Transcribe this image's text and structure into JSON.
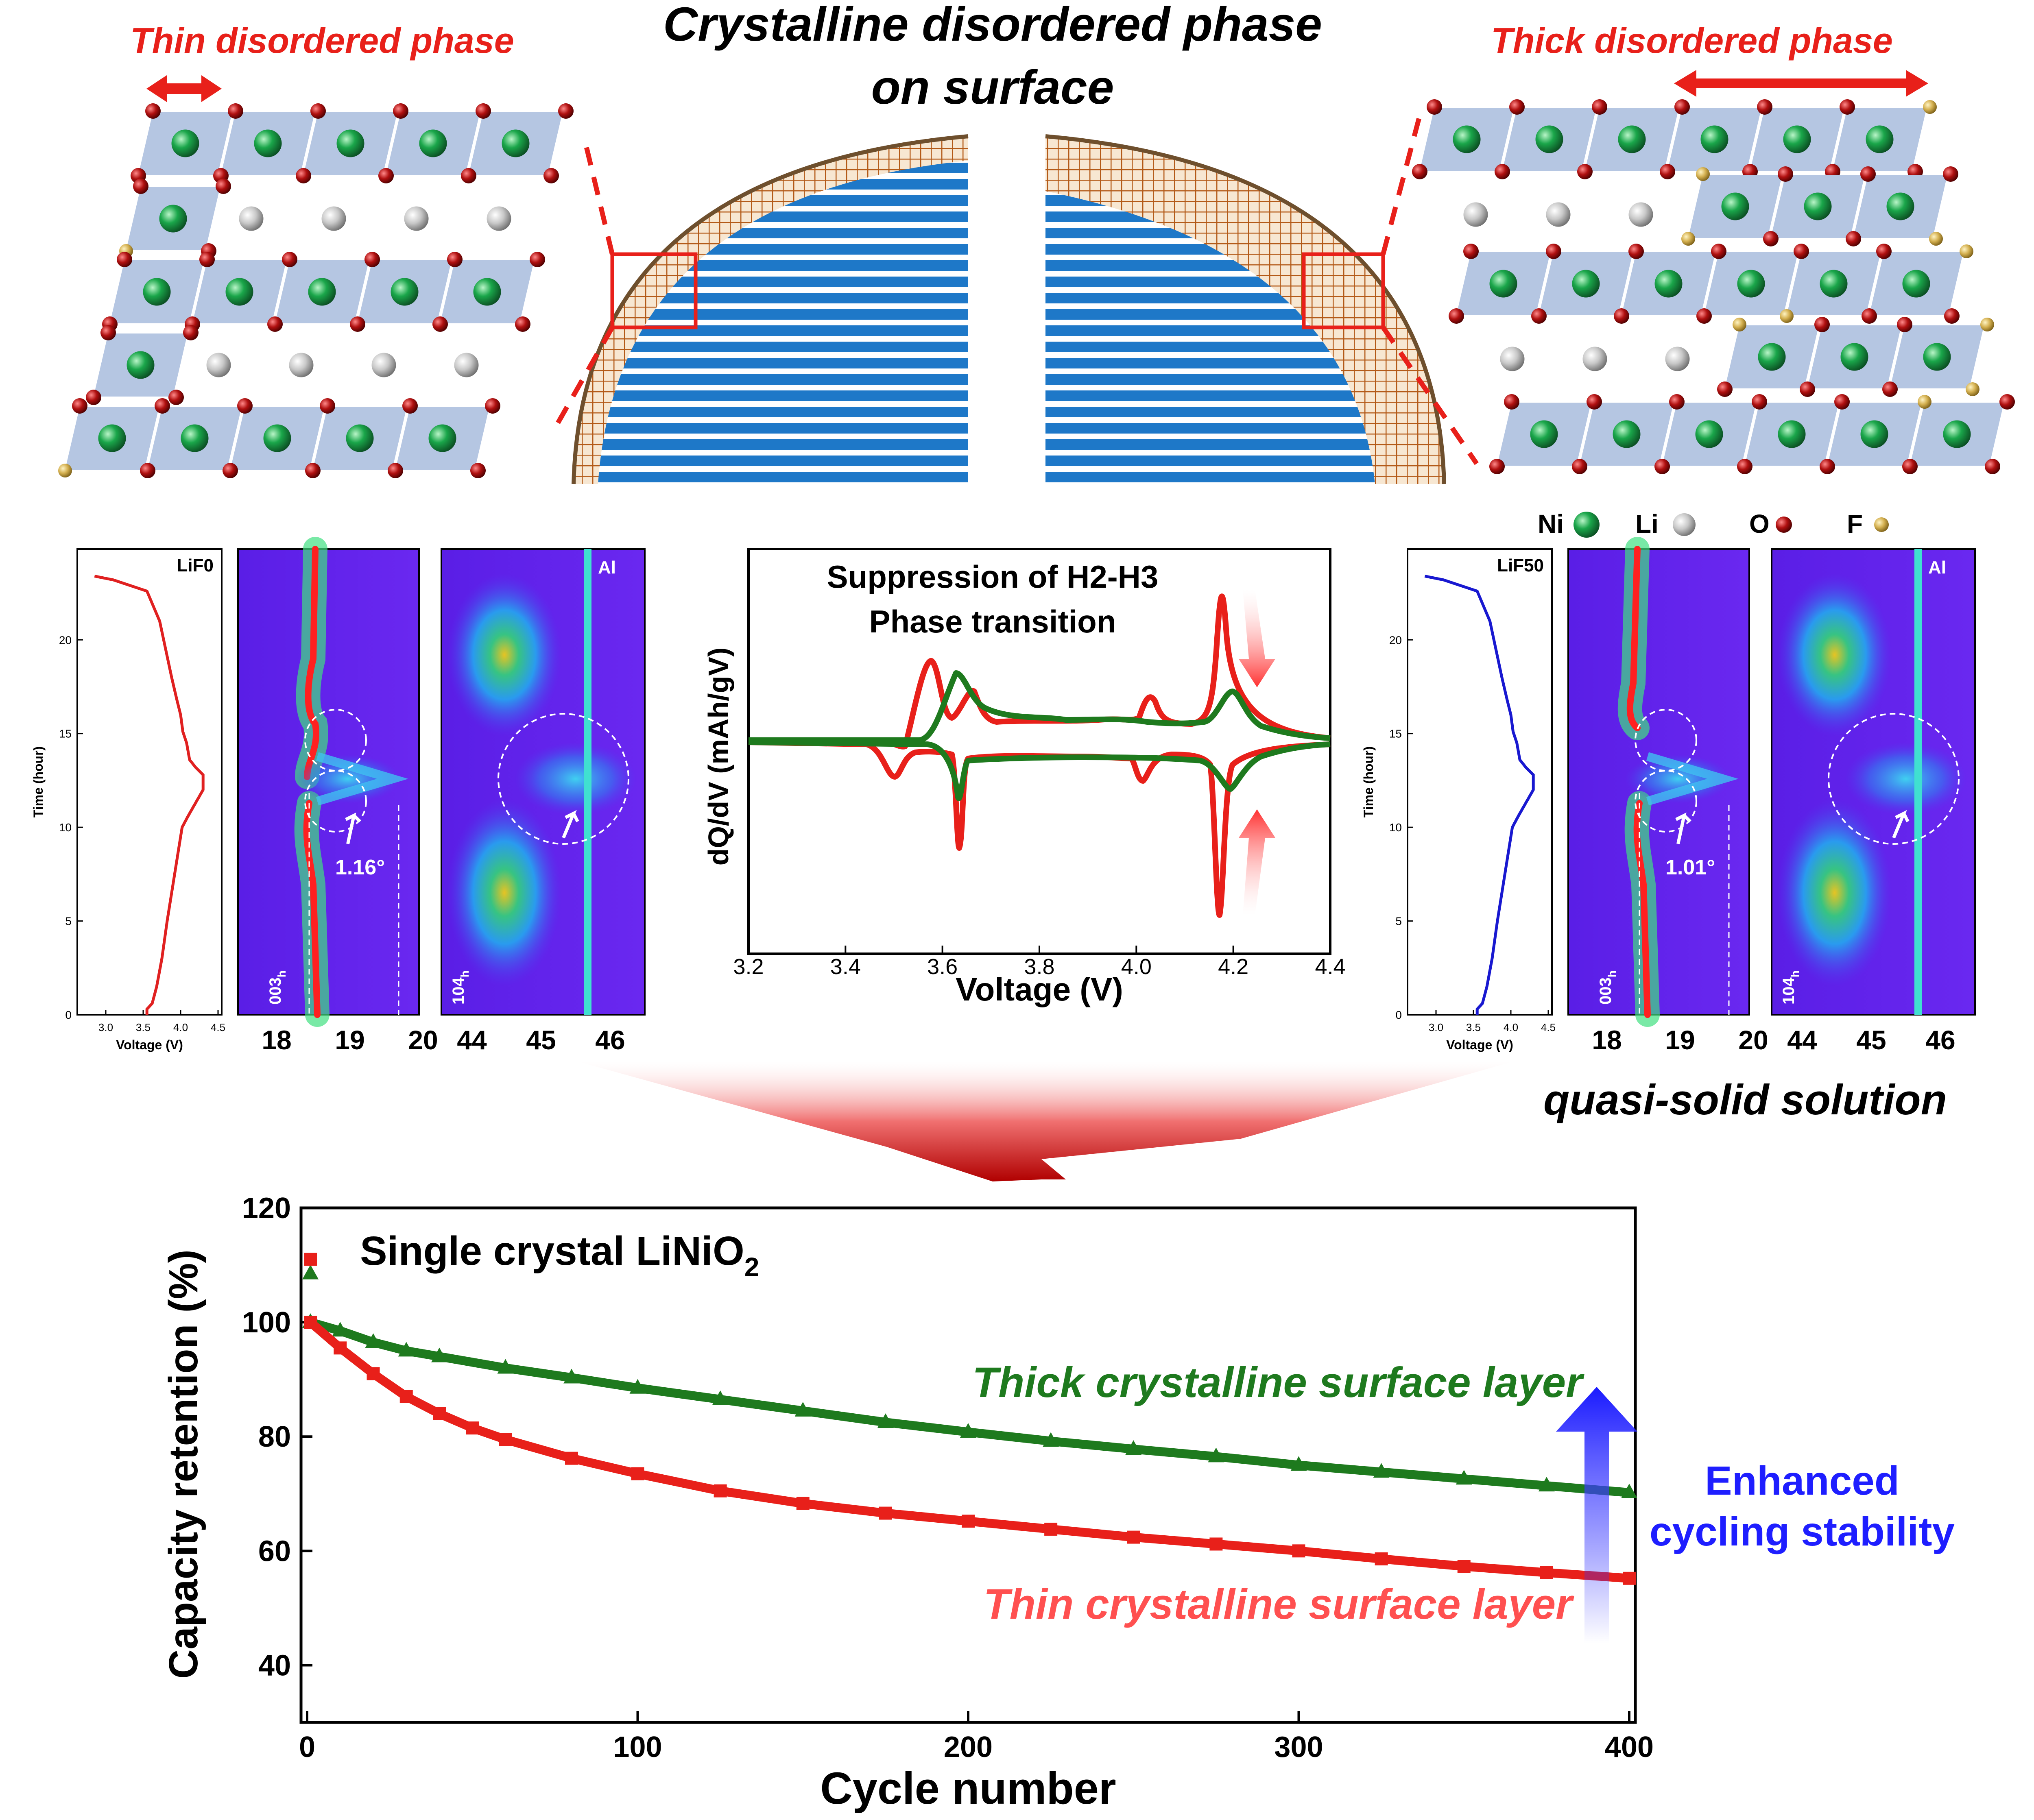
{
  "top": {
    "title_line1": "Crystalline disordered phase",
    "title_line2": "on surface",
    "thin_label": "Thin disordered phase",
    "thick_label": "Thick disordered phase",
    "legend": [
      {
        "label": "Ni",
        "color": "#1aa64a"
      },
      {
        "label": "Li",
        "color": "#c8c8c8"
      },
      {
        "label": "O",
        "color": "#b01010"
      },
      {
        "label": "F",
        "color": "#d4b050"
      }
    ]
  },
  "middle": {
    "left": {
      "sample": "LiF0",
      "volt_ticks": [
        "3.0",
        "3.5",
        "4.0",
        "4.5"
      ],
      "volt_label": "Voltage (V)",
      "time_ticks": [
        "0",
        "5",
        "10",
        "15",
        "20"
      ],
      "time_label": "Time (hour)",
      "peak003": "003",
      "peak104": "104",
      "sub_h": "h",
      "al": "Al",
      "angle": "1.16°",
      "xrd1_ticks": [
        "18",
        "19",
        "20"
      ],
      "xrd2_ticks": [
        "44",
        "45",
        "46"
      ]
    },
    "right": {
      "sample": "LiF50",
      "volt_ticks": [
        "3.0",
        "3.5",
        "4.0",
        "4.5"
      ],
      "volt_label": "Voltage (V)",
      "time_ticks": [
        "0",
        "5",
        "10",
        "15",
        "20"
      ],
      "time_label": "Time (hour)",
      "peak003": "003",
      "peak104": "104",
      "sub_h": "h",
      "al": "Al",
      "angle": "1.01°",
      "xrd1_ticks": [
        "18",
        "19",
        "20"
      ],
      "xrd2_ticks": [
        "44",
        "45",
        "46"
      ]
    },
    "quasi": "quasi-solid solution"
  },
  "dqdv": {
    "title_line1": "Suppression of H2-H3",
    "title_line2": "Phase transition",
    "ylabel": "dQ/dV (mAh/gV)",
    "xlabel": "Voltage (V)",
    "xticks": [
      "3.2",
      "3.4",
      "3.6",
      "3.8",
      "4.0",
      "4.2",
      "4.4"
    ],
    "colors": {
      "thin": "#e8201a",
      "thick": "#1e7a1e"
    }
  },
  "chart_data": {
    "type": "scatter",
    "title": "Single crystal LiNiO",
    "title_sub": "2",
    "xlabel": "Cycle number",
    "ylabel": "Capacity retention (%)",
    "xlim": [
      0,
      400
    ],
    "ylim": [
      30,
      120
    ],
    "xticks": [
      "0",
      "100",
      "200",
      "300",
      "400"
    ],
    "yticks": [
      "40",
      "60",
      "80",
      "100",
      "120"
    ],
    "series": [
      {
        "name": "Thick crystalline surface layer",
        "color": "#1e7a1e",
        "first_point": [
          1,
          108.5
        ],
        "x": [
          1,
          10,
          20,
          30,
          40,
          60,
          80,
          100,
          125,
          150,
          175,
          200,
          225,
          250,
          275,
          300,
          325,
          350,
          375,
          400
        ],
        "y": [
          100,
          98.5,
          96.5,
          95,
          94,
          92,
          90.3,
          88.5,
          86.5,
          84.5,
          82.5,
          80.8,
          79.2,
          77.8,
          76.5,
          75,
          73.8,
          72.6,
          71.4,
          70.2
        ]
      },
      {
        "name": "Thin crystalline surface layer",
        "color": "#e8201a",
        "first_point": [
          1,
          111
        ],
        "x": [
          1,
          10,
          20,
          30,
          40,
          50,
          60,
          80,
          100,
          125,
          150,
          175,
          200,
          225,
          250,
          275,
          300,
          325,
          350,
          375,
          400
        ],
        "y": [
          100,
          95.5,
          91,
          87,
          84,
          81.5,
          79.5,
          76.2,
          73.5,
          70.5,
          68.3,
          66.6,
          65.2,
          63.8,
          62.4,
          61.2,
          60,
          58.6,
          57.3,
          56.2,
          55.2
        ]
      }
    ],
    "annotation": "Enhanced\ncycling stability",
    "annotation_line1": "Enhanced",
    "annotation_line2": "cycling stability"
  }
}
